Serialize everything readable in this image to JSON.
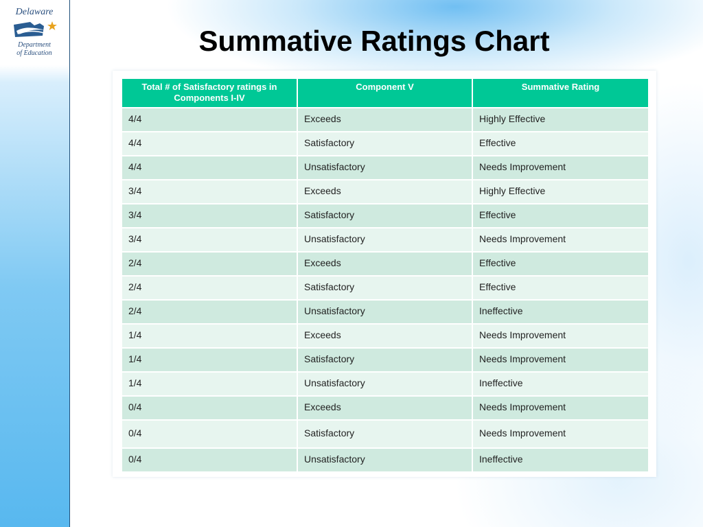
{
  "slide": {
    "title": "Summative Ratings Chart"
  },
  "logo": {
    "line1": "Delaware",
    "line2": "Department",
    "line3": "of Education",
    "icon": "delaware-emblem-icon"
  },
  "table": {
    "headers": [
      "Total # of Satisfactory ratings in Components I-IV",
      "Component V",
      "Summative Rating"
    ],
    "rows": [
      [
        "4/4",
        "Exceeds",
        "Highly Effective"
      ],
      [
        "4/4",
        "Satisfactory",
        "Effective"
      ],
      [
        "4/4",
        "Unsatisfactory",
        "Needs Improvement"
      ],
      [
        "3/4",
        "Exceeds",
        "Highly Effective"
      ],
      [
        "3/4",
        "Satisfactory",
        "Effective"
      ],
      [
        "3/4",
        "Unsatisfactory",
        "Needs Improvement"
      ],
      [
        "2/4",
        "Exceeds",
        "Effective"
      ],
      [
        "2/4",
        "Satisfactory",
        "Effective"
      ],
      [
        "2/4",
        "Unsatisfactory",
        "Ineffective"
      ],
      [
        "1/4",
        "Exceeds",
        "Needs Improvement"
      ],
      [
        "1/4",
        "Satisfactory",
        "Needs Improvement"
      ],
      [
        "1/4",
        "Unsatisfactory",
        "Ineffective"
      ],
      [
        "0/4",
        "Exceeds",
        "Needs Improvement"
      ],
      [
        "0/4",
        "Satisfactory",
        "Needs Improvement"
      ],
      [
        "0/4",
        "Unsatisfactory",
        "Ineffective"
      ]
    ]
  },
  "colors": {
    "header_bg": "#00c896",
    "row_dark": "#cfeadf",
    "row_light": "#e7f5ef",
    "sidebar": "#58b8ef"
  }
}
